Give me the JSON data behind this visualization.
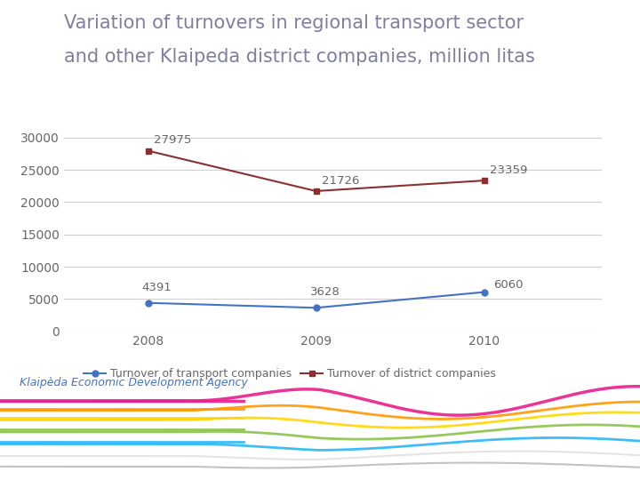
{
  "title_line1": "Variation of turnovers in regional transport sector",
  "title_line2": "and other Klaipeda district companies, million litas",
  "title_color": "#7F7F9F",
  "title_fontsize": 15,
  "years": [
    2008,
    2009,
    2010
  ],
  "transport_values": [
    4391,
    3628,
    6060
  ],
  "district_values": [
    27975,
    21726,
    23359
  ],
  "transport_color": "#4472C4",
  "district_color": "#8B3030",
  "transport_label": "Turnover of transport companies",
  "district_label": "Turnover of district companies",
  "ylim": [
    0,
    32000
  ],
  "yticks": [
    0,
    5000,
    10000,
    15000,
    20000,
    25000,
    30000
  ],
  "background_color": "#FFFFFF",
  "grid_color": "#D0D0D0",
  "annotation_fontsize": 9.5,
  "legend_fontsize": 9,
  "tick_fontsize": 10,
  "tick_color": "#666666",
  "footer_text": "Klaipèda Economic Development Agency",
  "footer_color": "#4472C4",
  "wave_colors": [
    "#E91E8C",
    "#FF9800",
    "#FFD700",
    "#8BC34A",
    "#29B6F6",
    "#E0E0E0",
    "#BDBDBD"
  ],
  "wave_base_y": [
    0.165,
    0.145,
    0.125,
    0.1,
    0.075,
    0.05,
    0.028
  ],
  "wave_amplitudes": [
    0.03,
    0.018,
    0.016,
    0.015,
    0.013,
    0.01,
    0.008
  ],
  "wave_freqs": [
    1.8,
    1.6,
    1.5,
    1.4,
    1.3,
    1.2,
    1.1
  ],
  "wave_phases": [
    0.0,
    0.8,
    1.6,
    2.4,
    3.2,
    4.0,
    4.8
  ],
  "wave_linewidths": [
    2.5,
    2.0,
    2.0,
    2.0,
    2.0,
    1.5,
    1.5
  ]
}
